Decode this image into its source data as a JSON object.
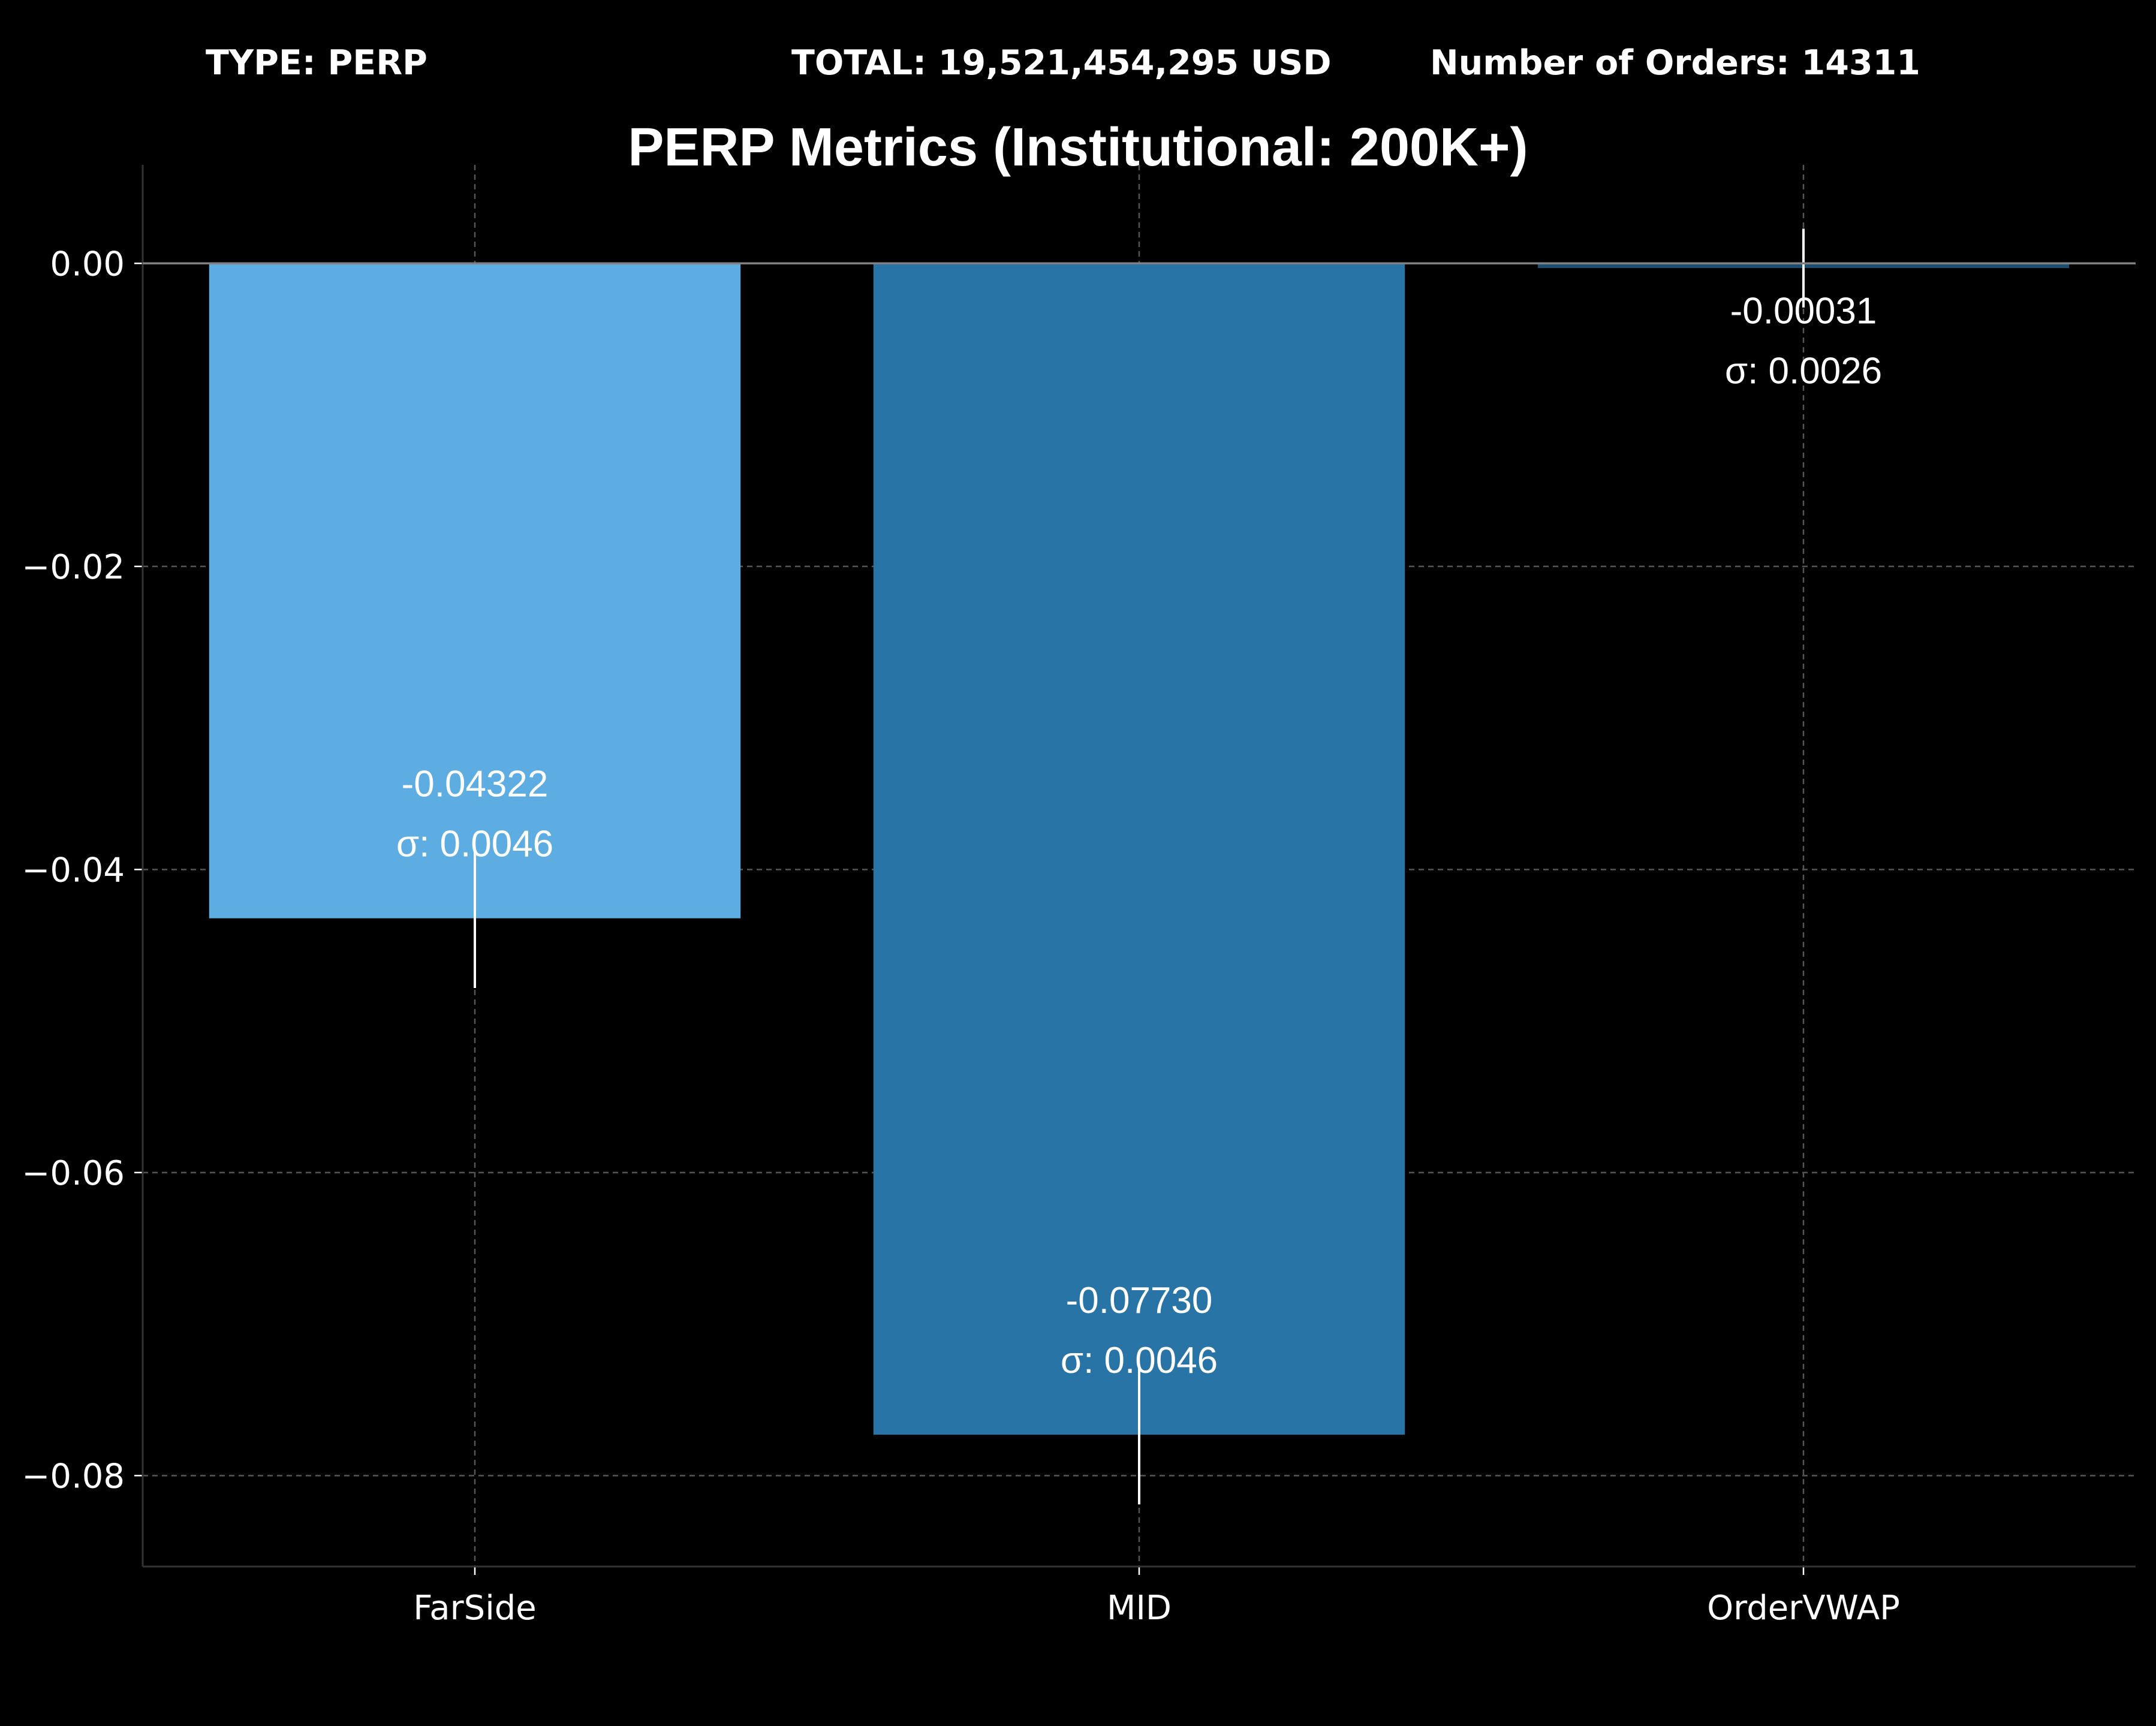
{
  "header": {
    "type_label": "TYPE: PERP",
    "total_label": "TOTAL: 19,521,454,295 USD",
    "orders_label": "Number of Orders: 14311"
  },
  "chart_data": {
    "type": "bar",
    "title": "PERP Metrics (Institutional: 200K+)",
    "xlabel": "",
    "ylabel": "",
    "categories": [
      "FarSide",
      "MID",
      "OrderVWAP"
    ],
    "values": [
      -0.04322,
      -0.0773,
      -0.00031
    ],
    "value_labels": [
      "-0.04322",
      "-0.07730",
      "-0.00031"
    ],
    "std": [
      0.0046,
      0.0046,
      0.0026
    ],
    "std_labels": [
      "σ: 0.0046",
      "σ: 0.0046",
      "σ: 0.0026"
    ],
    "ylim": [
      -0.086,
      0.0065
    ],
    "yticks": [
      0.0,
      -0.02,
      -0.04,
      -0.06,
      -0.08
    ],
    "ytick_labels": [
      "0.00",
      "−0.02",
      "−0.04",
      "−0.06",
      "−0.08"
    ],
    "grid": true,
    "colors": {
      "background": "#000000",
      "bars": [
        "#5DADE2",
        "#2874A6",
        "#1B4F72"
      ],
      "grid": "#555555",
      "zero_line": "#808080",
      "axis": "#333333",
      "text": "#ffffff",
      "error_bar": "#ffffff"
    }
  }
}
